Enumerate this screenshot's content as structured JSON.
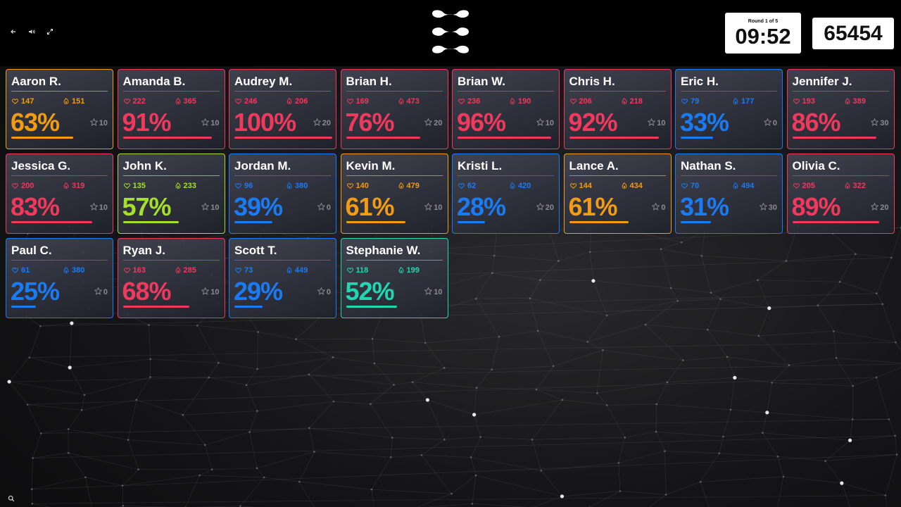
{
  "header": {
    "round_label": "Round 1 of 5",
    "timer": "09:52",
    "score": "65454",
    "controls": {
      "back_icon": "arrow-left-icon",
      "volume_icon": "speaker-icon",
      "fullscreen_icon": "expand-icon",
      "search_icon": "search-icon"
    }
  },
  "colors": {
    "orange": "#f39c12",
    "red": "#f0395d",
    "blue": "#1a7cf5",
    "lime": "#a4e02a",
    "teal": "#23d6b2"
  },
  "players": [
    {
      "name": "Aaron R.",
      "likes": "147",
      "fires": "151",
      "percent": "63%",
      "progress": 63,
      "stars": "10",
      "color": "orange"
    },
    {
      "name": "Amanda B.",
      "likes": "222",
      "fires": "365",
      "percent": "91%",
      "progress": 91,
      "stars": "10",
      "color": "red"
    },
    {
      "name": "Audrey M.",
      "likes": "246",
      "fires": "206",
      "percent": "100%",
      "progress": 100,
      "stars": "20",
      "color": "red"
    },
    {
      "name": "Brian H.",
      "likes": "169",
      "fires": "473",
      "percent": "76%",
      "progress": 76,
      "stars": "20",
      "color": "red"
    },
    {
      "name": "Brian W.",
      "likes": "236",
      "fires": "190",
      "percent": "96%",
      "progress": 96,
      "stars": "10",
      "color": "red"
    },
    {
      "name": "Chris H.",
      "likes": "206",
      "fires": "218",
      "percent": "92%",
      "progress": 92,
      "stars": "10",
      "color": "red"
    },
    {
      "name": "Eric H.",
      "likes": "79",
      "fires": "177",
      "percent": "33%",
      "progress": 33,
      "stars": "0",
      "color": "blue"
    },
    {
      "name": "Jennifer J.",
      "likes": "193",
      "fires": "389",
      "percent": "86%",
      "progress": 86,
      "stars": "30",
      "color": "red"
    },
    {
      "name": "Jessica G.",
      "likes": "200",
      "fires": "319",
      "percent": "83%",
      "progress": 83,
      "stars": "10",
      "color": "red"
    },
    {
      "name": "John K.",
      "likes": "135",
      "fires": "233",
      "percent": "57%",
      "progress": 57,
      "stars": "10",
      "color": "lime"
    },
    {
      "name": "Jordan M.",
      "likes": "96",
      "fires": "380",
      "percent": "39%",
      "progress": 39,
      "stars": "0",
      "color": "blue"
    },
    {
      "name": "Kevin M.",
      "likes": "140",
      "fires": "479",
      "percent": "61%",
      "progress": 61,
      "stars": "10",
      "color": "orange"
    },
    {
      "name": "Kristi L.",
      "likes": "62",
      "fires": "420",
      "percent": "28%",
      "progress": 28,
      "stars": "20",
      "color": "blue"
    },
    {
      "name": "Lance A.",
      "likes": "144",
      "fires": "434",
      "percent": "61%",
      "progress": 61,
      "stars": "0",
      "color": "orange"
    },
    {
      "name": "Nathan S.",
      "likes": "70",
      "fires": "494",
      "percent": "31%",
      "progress": 31,
      "stars": "30",
      "color": "blue"
    },
    {
      "name": "Olivia C.",
      "likes": "205",
      "fires": "322",
      "percent": "89%",
      "progress": 89,
      "stars": "20",
      "color": "red"
    },
    {
      "name": "Paul C.",
      "likes": "61",
      "fires": "380",
      "percent": "25%",
      "progress": 25,
      "stars": "0",
      "color": "blue"
    },
    {
      "name": "Ryan J.",
      "likes": "163",
      "fires": "285",
      "percent": "68%",
      "progress": 68,
      "stars": "10",
      "color": "red"
    },
    {
      "name": "Scott T.",
      "likes": "73",
      "fires": "449",
      "percent": "29%",
      "progress": 29,
      "stars": "0",
      "color": "blue"
    },
    {
      "name": "Stephanie W.",
      "likes": "118",
      "fires": "199",
      "percent": "52%",
      "progress": 52,
      "stars": "10",
      "color": "teal"
    }
  ]
}
